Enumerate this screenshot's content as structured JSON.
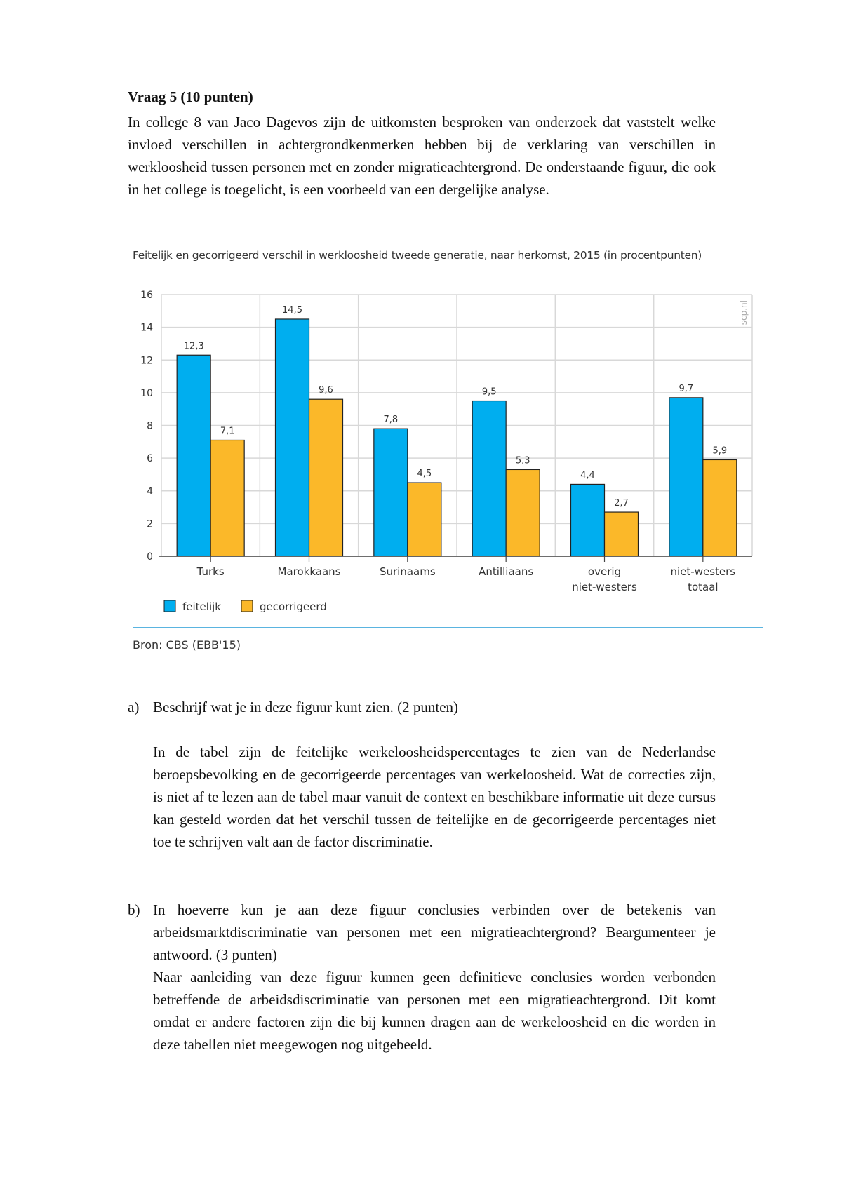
{
  "question": {
    "title": "Vraag 5 (10 punten)",
    "intro": "In college 8 van Jaco Dagevos zijn de uitkomsten besproken van onderzoek dat vaststelt welke invloed verschillen in achtergrondkenmerken hebben bij de verklaring van verschillen in werkloosheid tussen personen met en zonder migratieachtergrond. De onderstaande figuur, die ook in het college is toegelicht, is een voorbeeld van een dergelijke analyse."
  },
  "chart_data": {
    "type": "bar",
    "title": "Feitelijk en gecorrigeerd verschil in werkloosheid tweede generatie, naar herkomst, 2015 (in procentpunten)",
    "categories": [
      [
        "Turks"
      ],
      [
        "Marokkaans"
      ],
      [
        "Surinaams"
      ],
      [
        "Antilliaans"
      ],
      [
        "overig",
        "niet-westers"
      ],
      [
        "niet-westers",
        "totaal"
      ]
    ],
    "series": [
      {
        "name": "feitelijk",
        "color": "#00aeef",
        "values": [
          12.3,
          14.5,
          7.8,
          9.5,
          4.4,
          9.7
        ],
        "labels": [
          "12,3",
          "14,5",
          "7,8",
          "9,5",
          "4,4",
          "9,7"
        ]
      },
      {
        "name": "gecorrigeerd",
        "color": "#fbb829",
        "values": [
          7.1,
          9.6,
          4.5,
          5.3,
          2.7,
          5.9
        ],
        "labels": [
          "7,1",
          "9,6",
          "4,5",
          "5,3",
          "2,7",
          "5,9"
        ]
      }
    ],
    "ylim": [
      0,
      16
    ],
    "yticks": [
      "0",
      "2",
      "4",
      "6",
      "8",
      "10",
      "12",
      "14",
      "16"
    ],
    "grid": true,
    "legend": "bottom-left",
    "watermark": "scp.nl",
    "source": "Bron: CBS (EBB'15)"
  },
  "answers": {
    "a_label": "a)",
    "a_question": "Beschrijf wat je in deze figuur kunt zien. (2 punten)",
    "a_answer": "In de tabel zijn de feitelijke werkeloosheidspercentages te zien van de Nederlandse beroepsbevolking en de gecorrigeerde percentages van werkeloosheid. Wat de correcties zijn, is niet af te lezen aan de tabel maar vanuit de context en beschikbare informatie uit deze cursus kan gesteld worden dat het verschil tussen de feitelijke en de gecorrigeerde percentages niet toe te schrijven valt aan de factor discriminatie.",
    "b_label": "b)",
    "b_question": "In hoeverre kun je aan deze figuur conclusies verbinden over de betekenis van arbeidsmarktdiscriminatie van personen met een migratieachtergrond? Beargumenteer je antwoord. (3 punten)",
    "b_answer": "Naar aanleiding van deze figuur kunnen geen definitieve conclusies worden verbonden betreffende de arbeidsdiscriminatie van personen met een migratieachtergrond. Dit komt omdat er andere factoren zijn die bij kunnen dragen aan de werkeloosheid en die worden in deze tabellen niet meegewogen nog uitgebeeld."
  }
}
